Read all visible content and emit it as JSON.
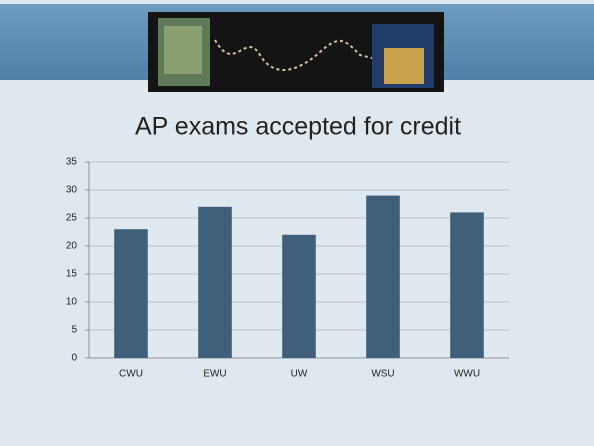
{
  "chart_data": {
    "type": "bar",
    "title": "AP exams accepted for credit",
    "categories": [
      "CWU",
      "EWU",
      "UW",
      "WSU",
      "WWU"
    ],
    "values": [
      23,
      27,
      22,
      29,
      26
    ],
    "color": "#3f5f7b",
    "ylim": [
      0,
      35
    ],
    "yticks": [
      0,
      5,
      10,
      15,
      20,
      25,
      30,
      35
    ],
    "grid": true
  }
}
